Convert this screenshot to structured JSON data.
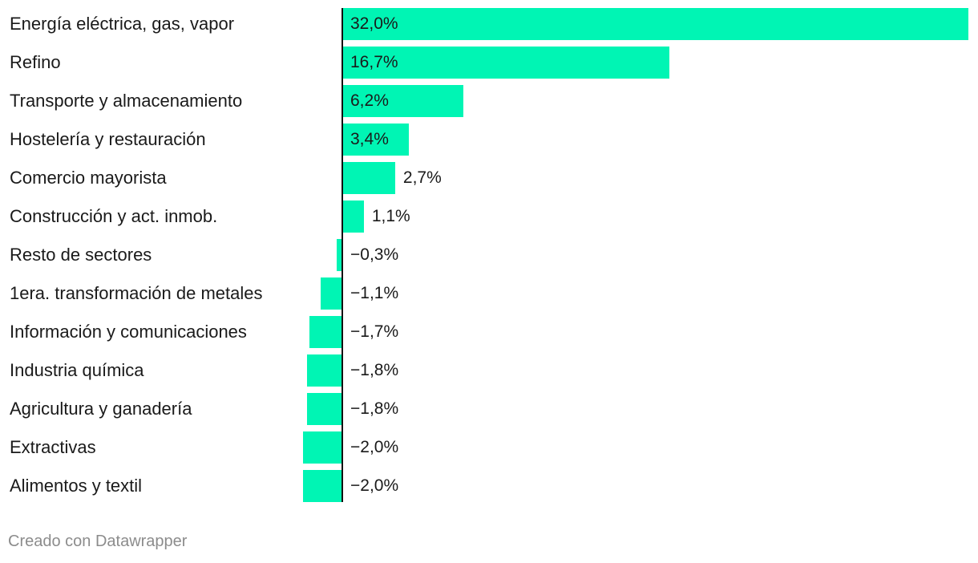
{
  "chart_data": {
    "type": "bar",
    "orientation": "horizontal",
    "categories": [
      "Energía eléctrica, gas, vapor",
      "Refino",
      "Transporte y almacenamiento",
      "Hostelería y restauración",
      "Comercio mayorista",
      "Construcción y act. inmob.",
      "Resto de sectores",
      "1era. transformación de metales",
      "Información y comunicaciones",
      "Industria química",
      "Agricultura y ganadería",
      "Extractivas",
      "Alimentos y textil"
    ],
    "values": [
      32.0,
      16.7,
      6.2,
      3.4,
      2.7,
      1.1,
      -0.3,
      -1.1,
      -1.7,
      -1.8,
      -1.8,
      -2.0,
      -2.0
    ],
    "value_labels": [
      "32,0%",
      "16,7%",
      "6,2%",
      "3,4%",
      "2,7%",
      "1,1%",
      "−0,3%",
      "−1,1%",
      "−1,7%",
      "−1,8%",
      "−1,8%",
      "−2,0%",
      "−2,0%"
    ],
    "xlim": [
      -2.0,
      32.0
    ],
    "grid": false,
    "bar_color": "#00F5B4",
    "axis_color": "#111111"
  },
  "footer": {
    "credit": "Creado con Datawrapper"
  }
}
